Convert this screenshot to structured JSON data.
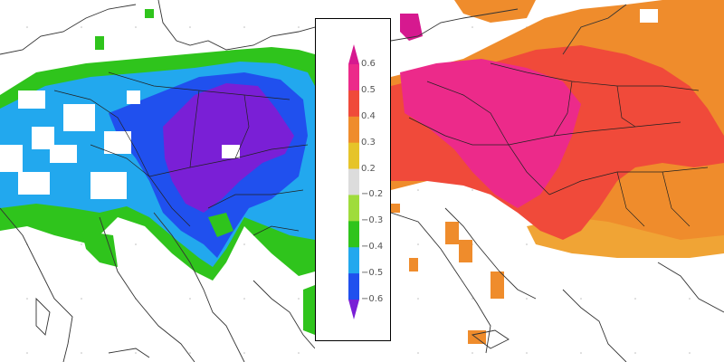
{
  "colorbar": {
    "ticks": [
      "0.6",
      "0.5",
      "0.4",
      "0.3",
      "0.2",
      "−0.2",
      "−0.3",
      "−0.4",
      "−0.5",
      "−0.6"
    ],
    "bins": [
      {
        "range": "> 0.6",
        "color": "#d6198f"
      },
      {
        "range": "0.5 – 0.6",
        "color": "#ec2a8a"
      },
      {
        "range": "0.4 – 0.5",
        "color": "#f04a3a"
      },
      {
        "range": "0.3 – 0.4",
        "color": "#ef8c2c"
      },
      {
        "range": "0.2 – 0.3",
        "color": "#e6c429"
      },
      {
        "range": "−0.2 – 0.2",
        "color": "#dcdcdc"
      },
      {
        "range": "−0.3 – −0.2",
        "color": "#9fdc3c"
      },
      {
        "range": "−0.4 – −0.3",
        "color": "#2fc41c"
      },
      {
        "range": "−0.5 – −0.4",
        "color": "#22a8ee"
      },
      {
        "range": "−0.6 – −0.5",
        "color": "#2050ee"
      },
      {
        "range": "< −0.6",
        "color": "#7a1fd6"
      }
    ]
  },
  "maps": {
    "left": {
      "sign": "negative correlation",
      "dominant_colors": [
        "#22a8ee",
        "#2050ee",
        "#7a1fd6",
        "#2fc41c"
      ]
    },
    "right": {
      "sign": "positive correlation",
      "dominant_colors": [
        "#f04a3a",
        "#ec2a8a",
        "#ef8c2c",
        "#e6c429"
      ]
    }
  }
}
